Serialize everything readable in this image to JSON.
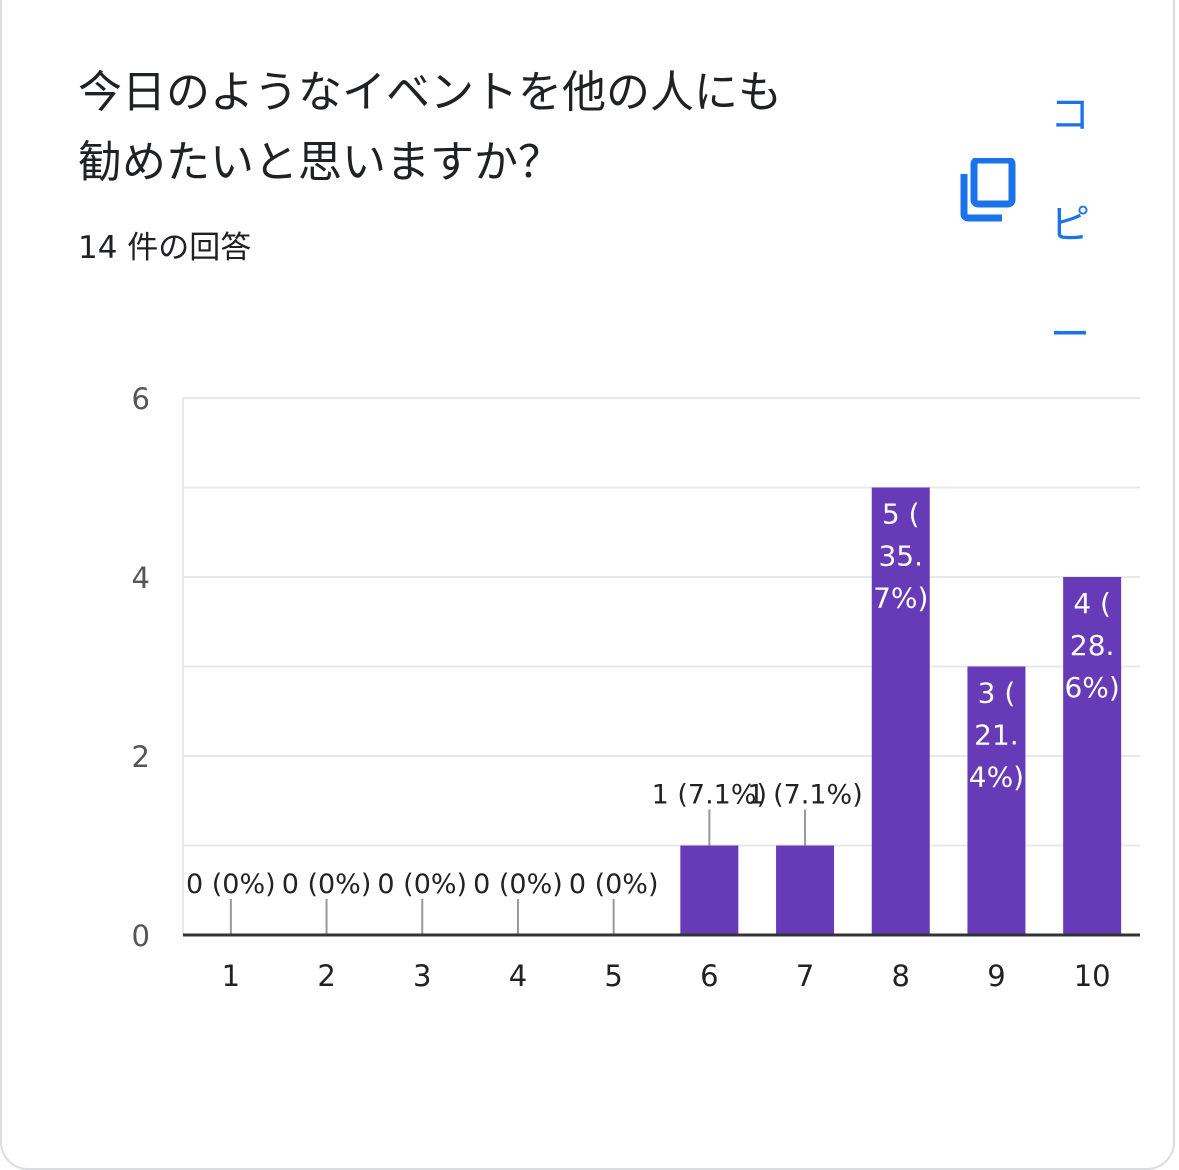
{
  "title": "今日のようなイベントを他の人にも\n勧めたいと思いますか？",
  "response_count": "14 件の回答",
  "copy_button": {
    "chars": [
      "コ",
      "ピ",
      "ー"
    ],
    "icon": "copy-icon",
    "color": "#1a73e8"
  },
  "colors": {
    "bar": "#673ab7",
    "grid": "#e8e8e8",
    "axis": "#333333",
    "label": "#222222",
    "tick": "#555555"
  },
  "chart_data": {
    "type": "bar",
    "categories": [
      "1",
      "2",
      "3",
      "4",
      "5",
      "6",
      "7",
      "8",
      "9",
      "10"
    ],
    "values": [
      0,
      0,
      0,
      0,
      0,
      1,
      1,
      5,
      3,
      4
    ],
    "data_labels": [
      "0 (0%)",
      "0 (0%)",
      "0 (0%)",
      "0 (0%)",
      "0 (0%)",
      "1 (7.1%)",
      "1 (7.1%)",
      "5 (35.7%)",
      "3 (21.4%)",
      "4 (28.6%)"
    ],
    "y_ticks": [
      "0",
      "2",
      "4",
      "6"
    ],
    "ylim": [
      0,
      6
    ],
    "grid": true
  }
}
